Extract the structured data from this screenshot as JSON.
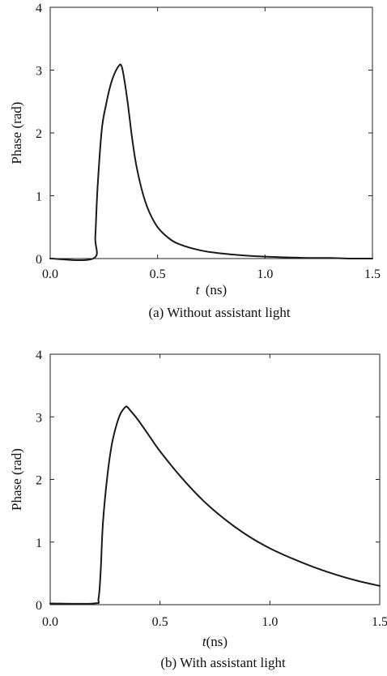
{
  "chart_data": [
    {
      "type": "line",
      "caption": "(a) Without assistant light",
      "xlabel_var": "t",
      "xlabel_unit": " (ns)",
      "ylabel": "Phase (rad)",
      "xlim": [
        0,
        1.5
      ],
      "ylim": [
        0,
        4
      ],
      "x_ticks": [
        "0.0",
        "0.5",
        "1.0",
        "1.5"
      ],
      "y_ticks": [
        "0",
        "1",
        "2",
        "3",
        "4"
      ],
      "grid": false,
      "series": [
        {
          "x": [
            0,
            0.2,
            0.21,
            0.22,
            0.24,
            0.26,
            0.28,
            0.3,
            0.32,
            0.33,
            0.34,
            0.36,
            0.38,
            0.4,
            0.43,
            0.46,
            0.5,
            0.55,
            0.6,
            0.7,
            0.8,
            0.9,
            1.0,
            1.1,
            1.2,
            1.3,
            1.4,
            1.5
          ],
          "y": [
            0.0,
            0.0,
            0.35,
            1.1,
            2.05,
            2.45,
            2.75,
            2.95,
            3.07,
            3.08,
            2.95,
            2.5,
            1.95,
            1.5,
            1.05,
            0.75,
            0.5,
            0.33,
            0.23,
            0.13,
            0.08,
            0.05,
            0.03,
            0.02,
            0.01,
            0.01,
            0.0,
            0.0
          ]
        }
      ]
    },
    {
      "type": "line",
      "caption": "(b) With assistant light",
      "xlabel_var": "t",
      "xlabel_unit": "(ns)",
      "ylabel": "Phase (rad)",
      "xlim": [
        0,
        1.5
      ],
      "ylim": [
        0,
        4
      ],
      "x_ticks": [
        "0.0",
        "0.5",
        "1.0",
        "1.5"
      ],
      "y_ticks": [
        "0",
        "1",
        "2",
        "3",
        "4"
      ],
      "grid": false,
      "series": [
        {
          "x": [
            0,
            0.2,
            0.22,
            0.23,
            0.24,
            0.26,
            0.28,
            0.3,
            0.32,
            0.34,
            0.35,
            0.37,
            0.4,
            0.45,
            0.5,
            0.6,
            0.7,
            0.8,
            0.9,
            1.0,
            1.1,
            1.2,
            1.3,
            1.4,
            1.5
          ],
          "y": [
            0.02,
            0.02,
            0.1,
            0.55,
            1.3,
            2.05,
            2.55,
            2.85,
            3.05,
            3.15,
            3.16,
            3.08,
            2.95,
            2.7,
            2.45,
            2.02,
            1.65,
            1.35,
            1.1,
            0.9,
            0.74,
            0.6,
            0.48,
            0.38,
            0.3
          ]
        }
      ]
    }
  ]
}
